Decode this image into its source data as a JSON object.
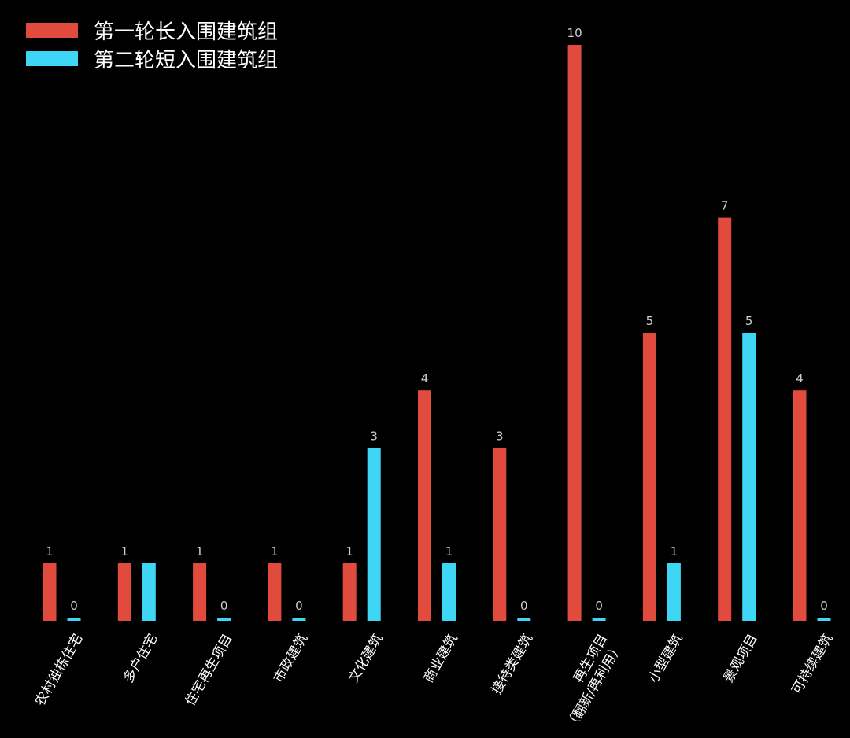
{
  "colors": {
    "series1": "#E04B3D",
    "series2": "#3FD6F5",
    "background": "#000000"
  },
  "chart_data": {
    "type": "bar",
    "title": "",
    "xlabel": "",
    "ylabel": "",
    "ylim": [
      0,
      10
    ],
    "grid": false,
    "legend": "top-left",
    "categories": [
      "农村独栋住宅",
      "多户住宅",
      "住宅再生项目",
      "市政建筑",
      "文化建筑",
      "商业建筑",
      "接待类建筑",
      "再生项目\n（翻新/再利用）",
      "小型建筑",
      "景观项目",
      "可持续建筑"
    ],
    "series": [
      {
        "name": "第一轮长入围建筑组",
        "values": [
          1,
          1,
          1,
          1,
          1,
          4,
          3,
          10,
          5,
          7,
          4
        ],
        "labels": [
          "1",
          "1",
          "1",
          "1",
          "1",
          "4",
          "3",
          "10",
          "5",
          "7",
          "4"
        ]
      },
      {
        "name": "第二轮短入围建筑组",
        "values": [
          0,
          1,
          0,
          0,
          3,
          1,
          0,
          0,
          1,
          5,
          0
        ],
        "labels": [
          "0",
          "",
          "0",
          "0",
          "3",
          "1",
          "0",
          "0",
          "1",
          "5",
          "0"
        ]
      }
    ]
  }
}
